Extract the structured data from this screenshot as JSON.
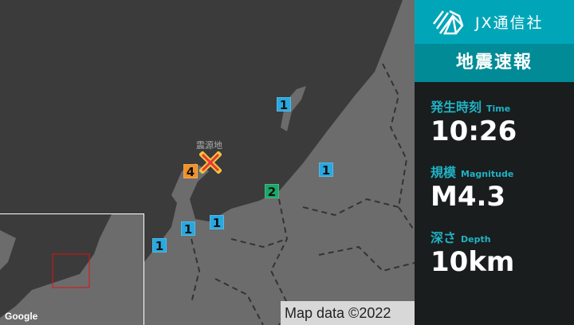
{
  "brand": {
    "name": "JX通信社"
  },
  "title": "地震速報",
  "info": {
    "time": {
      "label": "発生時刻",
      "label_en": "Time",
      "value": "10:26"
    },
    "magnitude": {
      "label": "規模",
      "label_en": "Magnitude",
      "value": "M4.3"
    },
    "depth": {
      "label": "深さ",
      "label_en": "Depth",
      "value": "10km"
    }
  },
  "map": {
    "epicenter_label": "震源地",
    "attribution": "Map data ©2022",
    "google": "Google",
    "intensity_markers": [
      {
        "value": "1",
        "color": "#29a8e0"
      },
      {
        "value": "1",
        "color": "#29a8e0"
      },
      {
        "value": "4",
        "color": "#f0922a"
      },
      {
        "value": "2",
        "color": "#1aa868"
      },
      {
        "value": "1",
        "color": "#29a8e0"
      },
      {
        "value": "1",
        "color": "#29a8e0"
      },
      {
        "value": "1",
        "color": "#29a8e0"
      }
    ]
  },
  "colors": {
    "accent": "#00a6b8",
    "accent_dark": "#008b96",
    "epicenter": "#e8343c"
  }
}
